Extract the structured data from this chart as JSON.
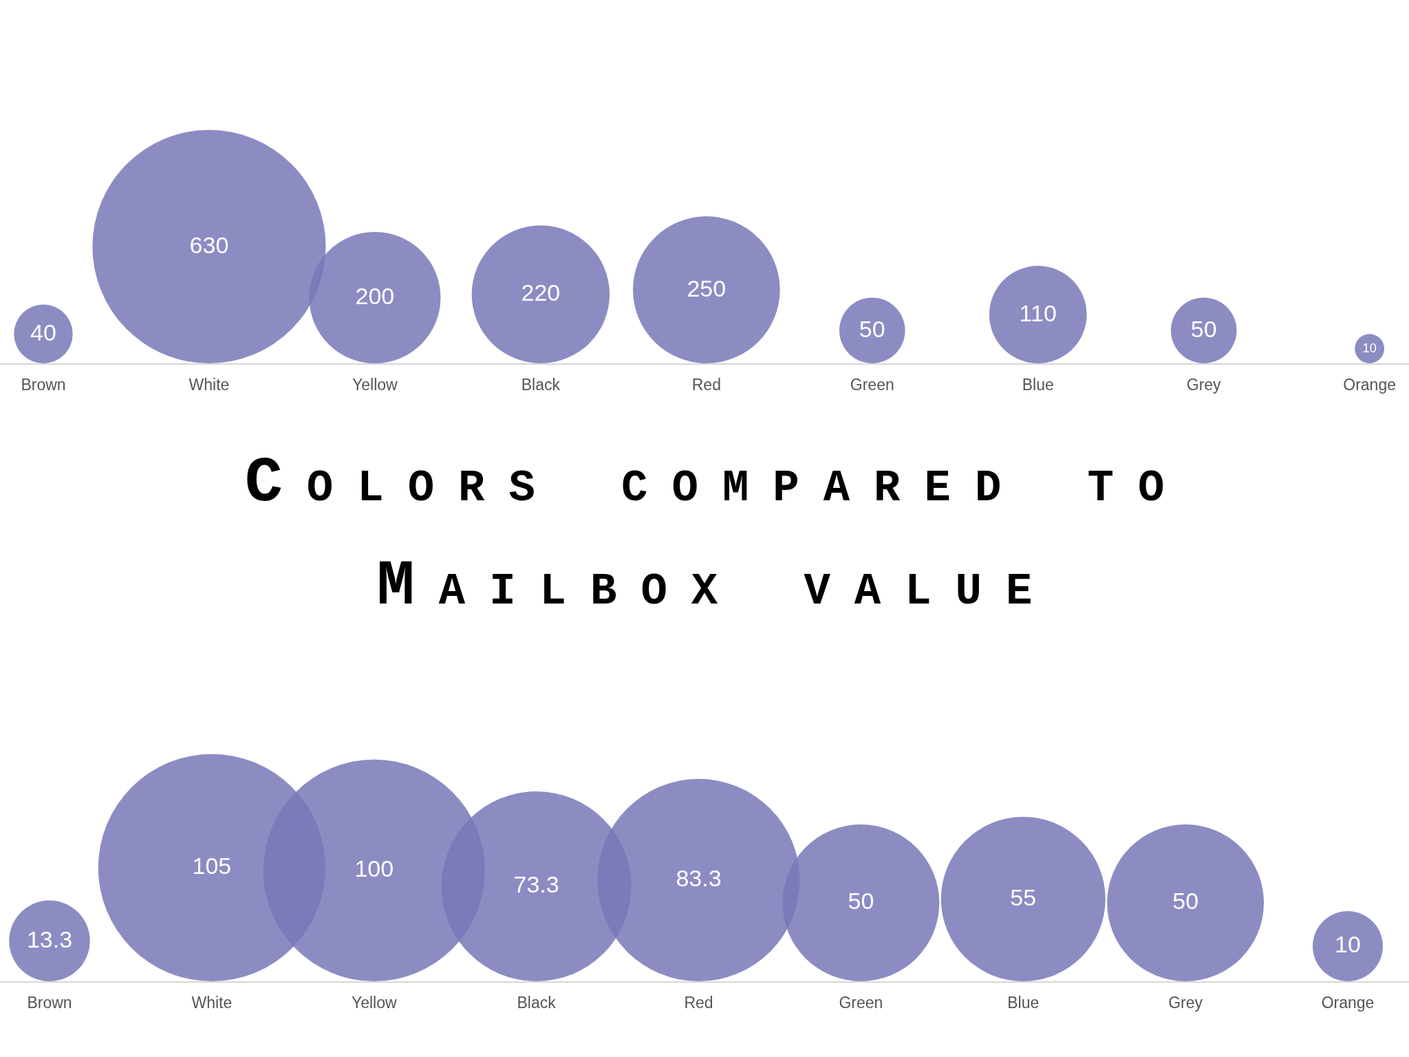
{
  "chart_data": [
    {
      "type": "other",
      "categories": [
        "Brown",
        "White",
        "Yellow",
        "Black",
        "Red",
        "Green",
        "Blue",
        "Grey",
        "Orange"
      ],
      "values": [
        40,
        630,
        200,
        220,
        250,
        50,
        110,
        50,
        10
      ],
      "color": "#8c8cc3",
      "data_labels": true
    },
    {
      "type": "other",
      "title": "Colors compared to Mailbox value",
      "categories": [
        "Brown",
        "White",
        "Yellow",
        "Black",
        "Red",
        "Green",
        "Blue",
        "Grey",
        "Orange"
      ],
      "values": [
        13.3,
        105,
        100,
        73.3,
        83.3,
        50,
        55,
        50,
        10
      ],
      "color": "#8c8cc3",
      "data_labels": true
    }
  ]
}
